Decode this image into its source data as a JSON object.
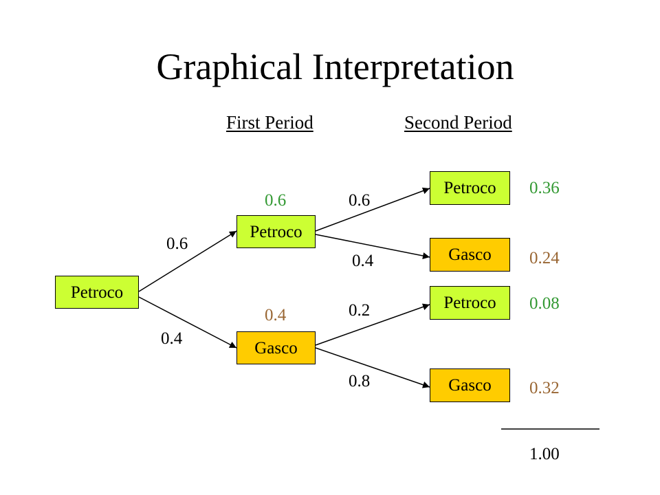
{
  "title": "Graphical Interpretation",
  "headers": {
    "first": "First Period",
    "second": "Second Period"
  },
  "colors": {
    "petroco_fill": "#ccff33",
    "gasco_fill": "#ffcc00",
    "green_text": "#339933",
    "brown_text": "#996633"
  },
  "nodes": {
    "root": "Petroco",
    "p1_petroco": "Petroco",
    "p1_gasco": "Gasco",
    "p2_pp": "Petroco",
    "p2_pg": "Gasco",
    "p2_gp": "Petroco",
    "p2_gg": "Gasco"
  },
  "branch_probs": {
    "root_to_petroco": "0.6",
    "root_to_gasco": "0.4",
    "petroco_to_petroco": "0.6",
    "petroco_to_gasco": "0.4",
    "gasco_to_petroco": "0.2",
    "gasco_to_gasco": "0.8"
  },
  "state_probs": {
    "p1_petroco": "0.6",
    "p1_gasco": "0.4"
  },
  "outcomes": {
    "pp": "0.36",
    "pg": "0.24",
    "gp": "0.08",
    "gg": "0.32",
    "total": "1.00"
  }
}
